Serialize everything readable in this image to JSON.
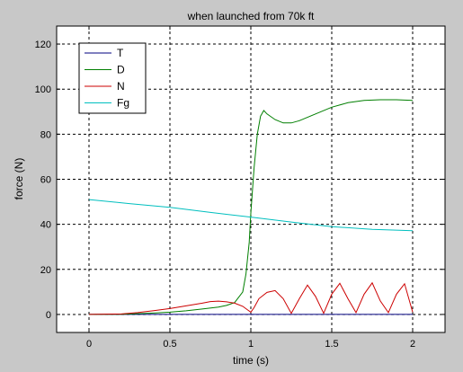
{
  "chart_data": {
    "type": "line",
    "title": "when launched from 70k ft",
    "xlabel": "time (s)",
    "ylabel": "force (N)",
    "xlim": [
      -0.2,
      2.2
    ],
    "ylim": [
      -8,
      128
    ],
    "xticks": [
      0,
      0.5,
      1,
      1.5,
      2
    ],
    "xtick_labels": [
      "0",
      "0.5",
      "1",
      "1.5",
      "2"
    ],
    "yticks": [
      0,
      20,
      40,
      60,
      80,
      100,
      120
    ],
    "ytick_labels": [
      "0",
      "20",
      "40",
      "60",
      "80",
      "100",
      "120"
    ],
    "grid": true,
    "legend_position": "top-left",
    "series": [
      {
        "name": "T",
        "color": "#00007f",
        "x": [
          0,
          2
        ],
        "y": [
          0,
          0
        ]
      },
      {
        "name": "D",
        "color": "#007f00",
        "x": [
          0,
          0.2,
          0.4,
          0.5,
          0.6,
          0.7,
          0.8,
          0.85,
          0.9,
          0.95,
          0.97,
          0.99,
          1.0,
          1.02,
          1.04,
          1.06,
          1.08,
          1.1,
          1.15,
          1.2,
          1.25,
          1.3,
          1.4,
          1.5,
          1.6,
          1.7,
          1.8,
          1.9,
          2.0
        ],
        "y": [
          0,
          0.1,
          0.6,
          1.0,
          1.6,
          2.4,
          3.3,
          4.0,
          5.3,
          10,
          18,
          32,
          45,
          65,
          80,
          88,
          90.5,
          89,
          86.5,
          85,
          85,
          86,
          89,
          92,
          94,
          95,
          95.3,
          95.3,
          95
        ]
      },
      {
        "name": "N",
        "color": "#cc0000",
        "x": [
          0,
          0.2,
          0.3,
          0.4,
          0.5,
          0.6,
          0.7,
          0.75,
          0.8,
          0.85,
          0.9,
          0.95,
          0.98,
          1.0,
          1.02,
          1.05,
          1.1,
          1.15,
          1.2,
          1.25,
          1.3,
          1.35,
          1.4,
          1.45,
          1.5,
          1.55,
          1.6,
          1.65,
          1.7,
          1.75,
          1.8,
          1.85,
          1.9,
          1.95,
          2.0
        ],
        "y": [
          0,
          0.2,
          0.8,
          1.7,
          2.6,
          3.8,
          5.0,
          5.7,
          5.9,
          5.6,
          5.0,
          3.6,
          2.0,
          1.0,
          3.0,
          7.0,
          9.8,
          10.6,
          7.0,
          0.5,
          7.0,
          13.0,
          8.0,
          0.5,
          9.0,
          13.8,
          7.0,
          0.8,
          9.0,
          14.0,
          6.0,
          0.8,
          9.0,
          13.6,
          1.0
        ]
      },
      {
        "name": "Fg",
        "color": "#00bfbf",
        "x": [
          0,
          0.25,
          0.5,
          0.75,
          1.0,
          1.25,
          1.5,
          1.75,
          2.0
        ],
        "y": [
          51,
          49.2,
          47.5,
          45.3,
          43.2,
          41.0,
          39.0,
          37.8,
          37.2
        ]
      }
    ]
  }
}
